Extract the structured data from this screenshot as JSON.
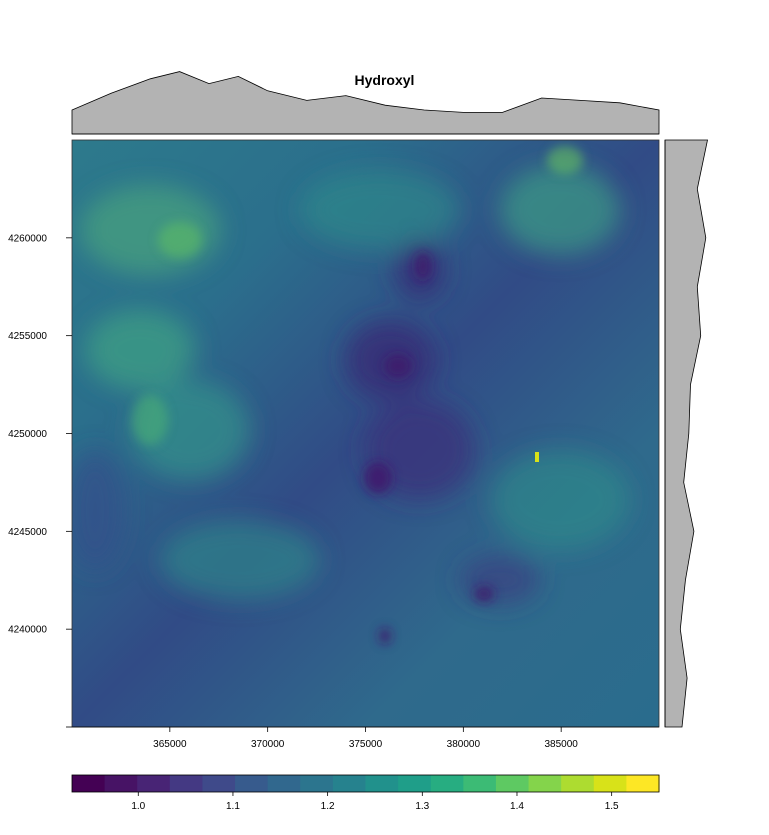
{
  "chart_data": {
    "type": "heatmap",
    "title": "Hydroxyl",
    "xlabel": "",
    "ylabel": "",
    "xlim": [
      360000,
      390000
    ],
    "ylim": [
      4235000,
      4265000
    ],
    "x_ticks": [
      365000,
      370000,
      375000,
      380000,
      385000
    ],
    "x_tick_labels": [
      "365000",
      "370000",
      "375000",
      "380000",
      "385000"
    ],
    "y_ticks": [
      4240000,
      4245000,
      4250000,
      4255000,
      4260000
    ],
    "y_tick_labels": [
      "4240000",
      "4245000",
      "4250000",
      "4255000",
      "4260000"
    ],
    "colorbar": {
      "range": [
        0.93,
        1.55
      ],
      "ticks": [
        1.0,
        1.1,
        1.2,
        1.3,
        1.4,
        1.5
      ],
      "tick_labels": [
        "1.0",
        "1.1",
        "1.2",
        "1.3",
        "1.4",
        "1.5"
      ],
      "colors": [
        "#440154",
        "#471365",
        "#482475",
        "#443983",
        "#3f4a8a",
        "#375b8d",
        "#31688e",
        "#2c758e",
        "#26828e",
        "#21918c",
        "#1f9e89",
        "#27ad81",
        "#3cbb75",
        "#5ec962",
        "#84d44b",
        "#addc30",
        "#d8e219",
        "#fde725"
      ]
    },
    "top_profile": {
      "x": [
        360000,
        362000,
        364000,
        365500,
        367000,
        368500,
        370000,
        372000,
        374000,
        376000,
        378000,
        380000,
        382000,
        384000,
        386000,
        388000,
        390000
      ],
      "mean": [
        1.1,
        1.17,
        1.23,
        1.26,
        1.21,
        1.24,
        1.18,
        1.14,
        1.16,
        1.12,
        1.1,
        1.09,
        1.09,
        1.15,
        1.14,
        1.13,
        1.1
      ]
    },
    "right_profile": {
      "y": [
        4265000,
        4262500,
        4260000,
        4257500,
        4255000,
        4252500,
        4250000,
        4247500,
        4245000,
        4242500,
        4240000,
        4237500,
        4235000
      ],
      "mean": [
        1.25,
        1.19,
        1.24,
        1.19,
        1.21,
        1.15,
        1.14,
        1.11,
        1.17,
        1.12,
        1.09,
        1.13,
        1.1
      ]
    }
  }
}
